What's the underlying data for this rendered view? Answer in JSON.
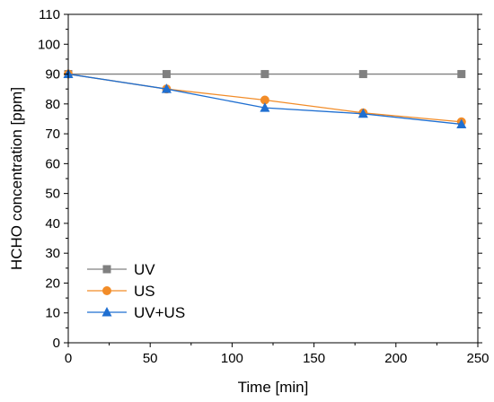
{
  "chart_data": {
    "type": "line",
    "xlabel": "Time [min]",
    "ylabel": "HCHO concentration [ppm]",
    "xlim": [
      0,
      250
    ],
    "ylim": [
      0,
      110
    ],
    "xticks": [
      0,
      50,
      100,
      150,
      200,
      250
    ],
    "yticks": [
      0,
      10,
      20,
      30,
      40,
      50,
      60,
      70,
      80,
      90,
      100,
      110
    ],
    "grid": false,
    "legend_position": "bottom-left",
    "x": [
      0,
      60,
      120,
      180,
      240
    ],
    "series": [
      {
        "name": "UV",
        "color": "#808080",
        "marker": "square",
        "values": [
          90,
          90,
          90,
          90,
          90
        ]
      },
      {
        "name": "US",
        "color": "#F28C28",
        "marker": "circle",
        "values": [
          90,
          85,
          81.3,
          77,
          74
        ]
      },
      {
        "name": "UV+US",
        "color": "#1F6FD1",
        "marker": "triangle",
        "values": [
          90,
          85,
          78.7,
          76.7,
          73.2
        ]
      }
    ]
  }
}
